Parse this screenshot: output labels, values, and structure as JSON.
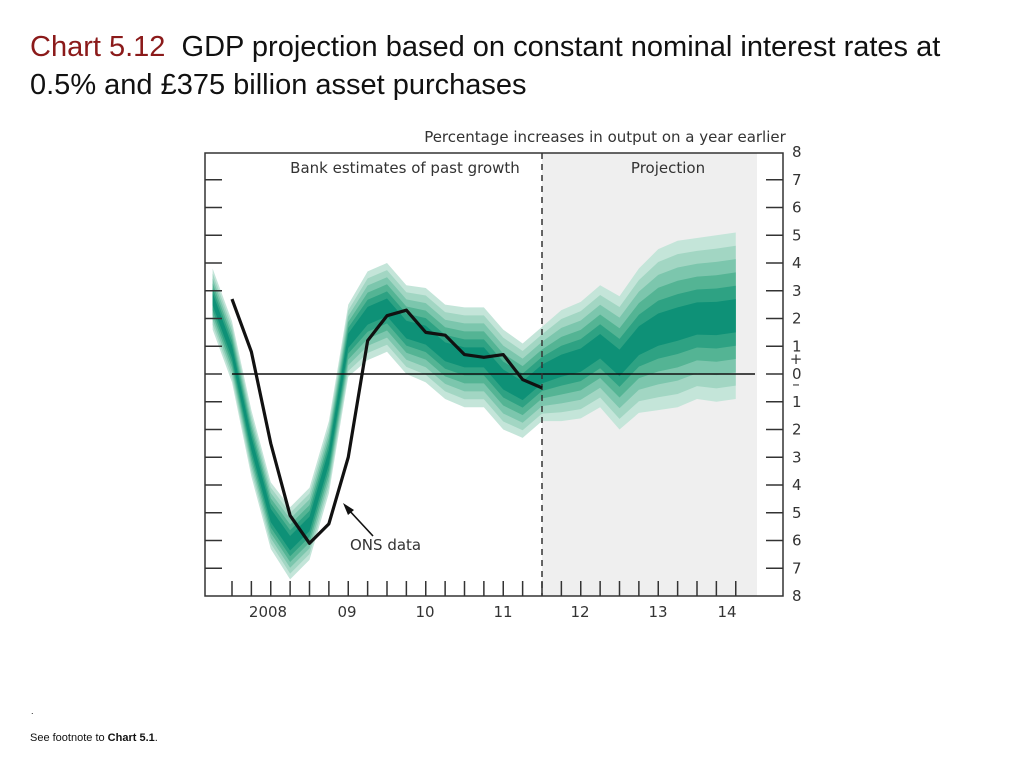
{
  "slide": {
    "chart_number": "Chart 5.12",
    "chart_title": "GDP projection based on constant nominal interest rates at 0.5% and £375 billion asset purchases",
    "dot": ".",
    "footnote_prefix": "See footnote to ",
    "footnote_ref": "Chart 5.1",
    "footnote_suffix": "."
  },
  "chart_data": {
    "type": "area",
    "title": "Percentage increases in output on a year earlier",
    "past_label": "Bank estimates of past growth",
    "projection_label": "Projection",
    "annotation": "ONS data",
    "x_tick_labels": [
      "2008",
      "09",
      "10",
      "11",
      "12",
      "13",
      "14"
    ],
    "y_tick_labels": [
      "8",
      "7",
      "6",
      "5",
      "4",
      "3",
      "2",
      "1",
      "0",
      "1",
      "2",
      "3",
      "4",
      "5",
      "6",
      "7",
      "8"
    ],
    "y_sign_plus": "+",
    "y_sign_minus": "–",
    "xlim": [
      2007.75,
      2014.75
    ],
    "ylim": [
      -8,
      8
    ],
    "projection_start": 2012.0,
    "grid": false,
    "colors": {
      "fan_dark": "#0e9177",
      "fan_light": "#bfe3d6",
      "line": "#111111",
      "projection_bg": "#efefef"
    },
    "ons_series": {
      "name": "ONS data",
      "x": [
        2008.0,
        2008.25,
        2008.5,
        2008.75,
        2009.0,
        2009.25,
        2009.5,
        2009.75,
        2010.0,
        2010.25,
        2010.5,
        2010.75,
        2011.0,
        2011.25,
        2011.5,
        2011.75,
        2012.0
      ],
      "y": [
        2.7,
        0.8,
        -2.5,
        -5.1,
        -6.1,
        -5.4,
        -3.0,
        1.2,
        2.1,
        2.3,
        1.5,
        1.4,
        0.7,
        0.6,
        0.7,
        -0.2,
        -0.5
      ]
    },
    "fan_x": [
      2007.75,
      2008.0,
      2008.25,
      2008.5,
      2008.75,
      2009.0,
      2009.25,
      2009.5,
      2009.75,
      2010.0,
      2010.25,
      2010.5,
      2010.75,
      2011.0,
      2011.25,
      2011.5,
      2011.75,
      2012.0,
      2012.25,
      2012.5,
      2012.75,
      2013.0,
      2013.25,
      2013.5,
      2013.75,
      2014.0,
      2014.25,
      2014.5
    ],
    "fan_center": [
      2.7,
      0.8,
      -2.5,
      -5.1,
      -6.1,
      -5.4,
      -3.0,
      1.2,
      2.1,
      2.4,
      1.6,
      1.4,
      0.8,
      0.6,
      0.6,
      -0.2,
      -0.6,
      0.0,
      0.3,
      0.5,
      1.0,
      0.4,
      1.2,
      1.6,
      1.8,
      2.0,
      2.0,
      2.1
    ],
    "fan_halfwidth": [
      1.1,
      1.1,
      1.2,
      1.2,
      1.3,
      1.3,
      1.3,
      1.3,
      1.6,
      1.6,
      1.6,
      1.7,
      1.7,
      1.8,
      1.8,
      1.8,
      1.7,
      1.7,
      2.0,
      2.1,
      2.2,
      2.4,
      2.6,
      2.9,
      3.0,
      2.9,
      3.0,
      3.0
    ]
  }
}
